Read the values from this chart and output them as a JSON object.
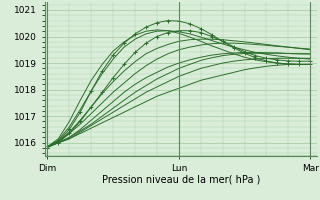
{
  "xlabel": "Pression niveau de la mer( hPa )",
  "background_color": "#d9edd9",
  "grid_color": "#aaccaa",
  "line_color": "#2d6e2d",
  "ylim": [
    1015.5,
    1021.3
  ],
  "yticks": [
    1016,
    1017,
    1018,
    1019,
    1020,
    1021
  ],
  "xtick_labels": [
    "Dim",
    "Lun",
    "Mar"
  ],
  "xtick_positions": [
    0,
    1,
    2
  ],
  "n_pts": 25,
  "lines": [
    [
      1015.85,
      1016.0,
      1016.15,
      1016.35,
      1016.55,
      1016.75,
      1016.95,
      1017.15,
      1017.35,
      1017.55,
      1017.75,
      1017.9,
      1018.05,
      1018.2,
      1018.35,
      1018.45,
      1018.55,
      1018.65,
      1018.75,
      1018.82,
      1018.88,
      1018.92,
      1018.95,
      1018.95,
      1018.95
    ],
    [
      1015.85,
      1016.0,
      1016.15,
      1016.4,
      1016.65,
      1016.9,
      1017.15,
      1017.4,
      1017.65,
      1017.9,
      1018.1,
      1018.3,
      1018.5,
      1018.65,
      1018.8,
      1018.9,
      1019.0,
      1019.07,
      1019.12,
      1019.15,
      1019.17,
      1019.18,
      1019.18,
      1019.18,
      1019.18
    ],
    [
      1015.85,
      1016.0,
      1016.2,
      1016.45,
      1016.7,
      1017.0,
      1017.3,
      1017.6,
      1017.9,
      1018.15,
      1018.4,
      1018.6,
      1018.8,
      1018.95,
      1019.1,
      1019.2,
      1019.28,
      1019.33,
      1019.36,
      1019.37,
      1019.37,
      1019.37,
      1019.36,
      1019.35,
      1019.35
    ],
    [
      1015.85,
      1016.0,
      1016.2,
      1016.5,
      1016.85,
      1017.2,
      1017.55,
      1017.9,
      1018.2,
      1018.45,
      1018.65,
      1018.85,
      1019.0,
      1019.12,
      1019.22,
      1019.3,
      1019.35,
      1019.38,
      1019.4,
      1019.4,
      1019.39,
      1019.38,
      1019.36,
      1019.35,
      1019.34
    ],
    [
      1015.85,
      1016.05,
      1016.35,
      1016.7,
      1017.1,
      1017.5,
      1017.9,
      1018.25,
      1018.6,
      1018.9,
      1019.15,
      1019.35,
      1019.5,
      1019.6,
      1019.68,
      1019.73,
      1019.75,
      1019.75,
      1019.73,
      1019.7,
      1019.67,
      1019.63,
      1019.6,
      1019.56,
      1019.53
    ],
    [
      1015.85,
      1016.05,
      1016.4,
      1016.85,
      1017.35,
      1017.85,
      1018.3,
      1018.7,
      1019.05,
      1019.35,
      1019.55,
      1019.7,
      1019.82,
      1019.88,
      1019.9,
      1019.9,
      1019.88,
      1019.84,
      1019.8,
      1019.75,
      1019.7,
      1019.65,
      1019.6,
      1019.55,
      1019.5
    ],
    [
      1015.85,
      1016.1,
      1016.6,
      1017.25,
      1017.95,
      1018.6,
      1019.15,
      1019.6,
      1019.9,
      1020.1,
      1020.2,
      1020.22,
      1020.18,
      1020.1,
      1019.98,
      1019.85,
      1019.72,
      1019.6,
      1019.5,
      1019.4,
      1019.33,
      1019.27,
      1019.22,
      1019.18,
      1019.15
    ],
    [
      1015.85,
      1016.15,
      1016.8,
      1017.6,
      1018.35,
      1018.95,
      1019.45,
      1019.8,
      1020.05,
      1020.2,
      1020.25,
      1020.22,
      1020.12,
      1019.98,
      1019.82,
      1019.65,
      1019.5,
      1019.35,
      1019.22,
      1019.12,
      1019.05,
      1019.0,
      1018.97,
      1018.95,
      1018.95
    ]
  ],
  "marker_lines": [
    [
      1015.82,
      1016.0,
      1016.35,
      1016.8,
      1017.35,
      1017.9,
      1018.45,
      1018.95,
      1019.4,
      1019.75,
      1020.0,
      1020.15,
      1020.22,
      1020.22,
      1020.15,
      1020.0,
      1019.82,
      1019.62,
      1019.43,
      1019.28,
      1019.18,
      1019.12,
      1019.08,
      1019.07,
      1019.07
    ],
    [
      1015.82,
      1016.05,
      1016.5,
      1017.15,
      1017.95,
      1018.7,
      1019.3,
      1019.75,
      1020.1,
      1020.35,
      1020.52,
      1020.6,
      1020.58,
      1020.48,
      1020.3,
      1020.07,
      1019.82,
      1019.58,
      1019.37,
      1019.2,
      1019.08,
      1019.0,
      1018.96,
      1018.95,
      1018.95
    ]
  ]
}
